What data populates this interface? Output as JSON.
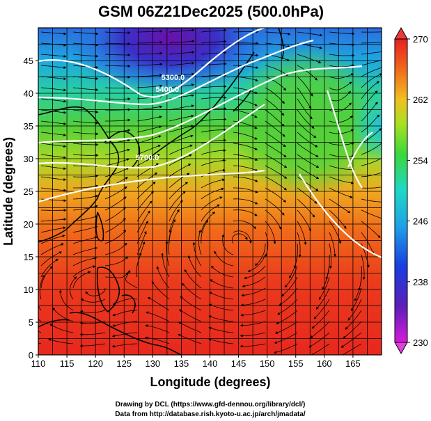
{
  "title": "GSM 06Z21Dec2025 (500.0hPa)",
  "map": {
    "xlabel": "Longitude (degrees)",
    "ylabel": "Latitude (degrees)",
    "xlim": [
      110,
      170
    ],
    "ylim": [
      0,
      50
    ],
    "x_ticks": [
      110,
      115,
      120,
      125,
      130,
      135,
      140,
      145,
      150,
      155,
      160,
      165
    ],
    "y_ticks": [
      0,
      5,
      10,
      15,
      20,
      25,
      30,
      35,
      40,
      45
    ],
    "temperature_field_description_colors": {
      "cold": "#5a1fa8",
      "cool": "#1e8ad6",
      "mid": "#52cf3a",
      "warm": "#f08a1a",
      "hot": "#e8281e"
    },
    "height_contours": [
      {
        "label": "5300.0",
        "lon": 131.5,
        "lat": 42.0
      },
      {
        "label": "5400.0",
        "lon": 130.5,
        "lat": 40.2
      },
      {
        "label": "5700.0",
        "lon": 127.0,
        "lat": 29.8
      }
    ]
  },
  "colorbar": {
    "range": [
      230,
      270
    ],
    "tick_labels": [
      "270",
      "262",
      "254",
      "246",
      "238",
      "230"
    ]
  },
  "credits": {
    "line1": "Drawing by DCL (https://www.gfd-dennou.org/library/dcl/)",
    "line2": "Data from http://database.rish.kyoto-u.ac.jp/arch/jmadata/"
  }
}
